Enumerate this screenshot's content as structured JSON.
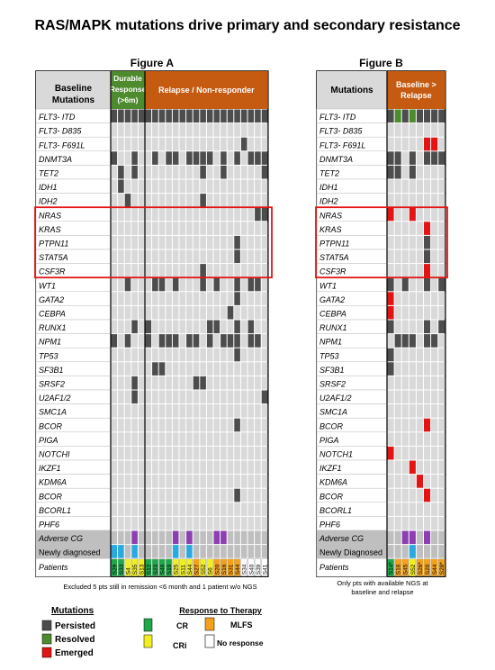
{
  "title": "RAS/MAPK mutations drive primary and secondary resistance",
  "figure_a": {
    "label": "Figure A",
    "header_left": [
      "Baseline",
      "Mutations"
    ],
    "header_durable": [
      "Durable",
      "Response",
      "(>6m)"
    ],
    "header_relapse": "Relapse / Non-responder",
    "footnote": "Excluded 5 pts still in remission <6 month and 1 patient w/o NGS"
  },
  "figure_b": {
    "label": "Figure B",
    "header_left": "Mutations",
    "header_relapse": [
      "Baseline >",
      "Relapse"
    ],
    "footnote": [
      "Only pts with available NGS at",
      "baseline  and relapse"
    ]
  },
  "legend": {
    "mutations_title": "Mutations",
    "persisted": "Persisted",
    "resolved": "Resolved",
    "emerged": "Emerged",
    "response_title": "Response to Therapy",
    "cr": "CR",
    "cri": "CRi",
    "mlfs": "MLFS",
    "no_response": "No response"
  },
  "colors": {
    "persisted": "#4d4d4d",
    "resolved": "#4e8a2e",
    "emerged": "#e31414",
    "empty": "#d9d9d9",
    "adverse": "#8b3fb0",
    "newly": "#2aa9e0",
    "cr": "#1ea84a",
    "cri": "#f2ef1f",
    "mlfs": "#f3a11a",
    "no_response": "#ffffff",
    "header_durable": "#4e8a2e",
    "header_relapse": "#c55a11",
    "highlight_box": "#e31414"
  },
  "chart_data": [
    {
      "type": "heatmap",
      "title": "Figure A",
      "rows": [
        "FLT3- ITD",
        "FLT3- D835",
        "FLT3- F691L",
        "DNMT3A",
        "TET2",
        "IDH1",
        "IDH2",
        "NRAS",
        "KRAS",
        "PTPN11",
        "STAT5A",
        "CSF3R",
        "WT1",
        "GATA2",
        "CEBPA",
        "RUNX1",
        "NPM1",
        "TP53",
        "SF3B1",
        "SRSF2",
        "U2AF1/2",
        "SMC1A",
        "BCOR",
        "PIGA",
        "NOTCHI",
        "IKZF1",
        "KDM6A",
        "BCOR",
        "BCORL1",
        "PHF6",
        "Adverse CG",
        "Newly diagnosed",
        "Patients"
      ],
      "patients": [
        "S29",
        "S33",
        "S4",
        "S35",
        "S13",
        "S12",
        "S23",
        "S46",
        "S19",
        "S25",
        "S11",
        "S44",
        "S27",
        "S52",
        "S6",
        "S20",
        "S16",
        "S31",
        "S44",
        "S34",
        "S40",
        "S39",
        "S41"
      ],
      "groups": [
        {
          "name": "Durable Response (>6m)",
          "size": 5
        },
        {
          "name": "Relapse / Non-responder",
          "size": 18
        }
      ],
      "response": [
        "CR",
        "CR",
        "CRi",
        "CRi",
        "CRi",
        "CR",
        "CR",
        "CR",
        "CR",
        "CRi",
        "CRi",
        "CRi",
        "MLFS",
        "CRi",
        "CRi",
        "MLFS",
        "MLFS",
        "MLFS",
        "MLFS",
        "No response",
        "No response",
        "No response",
        "No response"
      ],
      "highlight_rows": [
        "NRAS",
        "KRAS",
        "PTPN11",
        "STAT5A",
        "CSF3R"
      ],
      "mutations": {
        "FLT3- ITD": [
          [
            0,
            "P"
          ],
          [
            1,
            "P"
          ],
          [
            2,
            "P"
          ],
          [
            3,
            "P"
          ],
          [
            4,
            "P"
          ],
          [
            5,
            "P"
          ],
          [
            6,
            "P"
          ],
          [
            7,
            "P"
          ],
          [
            8,
            "P"
          ],
          [
            9,
            "P"
          ],
          [
            10,
            "P"
          ],
          [
            11,
            "P"
          ],
          [
            12,
            "P"
          ],
          [
            13,
            "P"
          ],
          [
            14,
            "P"
          ],
          [
            15,
            "P"
          ],
          [
            16,
            "P"
          ],
          [
            17,
            "P"
          ],
          [
            18,
            "P"
          ],
          [
            19,
            "P"
          ],
          [
            20,
            "P"
          ],
          [
            21,
            "P"
          ],
          [
            22,
            "P"
          ]
        ],
        "FLT3- F691L": [
          [
            19,
            "P"
          ]
        ],
        "DNMT3A": [
          [
            0,
            "P"
          ],
          [
            3,
            "P"
          ],
          [
            6,
            "P"
          ],
          [
            8,
            "P"
          ],
          [
            9,
            "P"
          ],
          [
            11,
            "P"
          ],
          [
            12,
            "P"
          ],
          [
            13,
            "P"
          ],
          [
            14,
            "P"
          ],
          [
            16,
            "P"
          ],
          [
            18,
            "P"
          ],
          [
            20,
            "P"
          ],
          [
            21,
            "P"
          ],
          [
            22,
            "P"
          ]
        ],
        "TET2": [
          [
            1,
            "P"
          ],
          [
            3,
            "P"
          ],
          [
            13,
            "P"
          ],
          [
            16,
            "P"
          ],
          [
            22,
            "P"
          ]
        ],
        "IDH1": [
          [
            1,
            "P"
          ]
        ],
        "IDH2": [
          [
            2,
            "P"
          ],
          [
            13,
            "P"
          ]
        ],
        "NRAS": [
          [
            21,
            "P"
          ],
          [
            22,
            "P"
          ]
        ],
        "KRAS": [],
        "PTPN11": [
          [
            18,
            "P"
          ]
        ],
        "STAT5A": [
          [
            18,
            "P"
          ]
        ],
        "CSF3R": [
          [
            13,
            "P"
          ]
        ],
        "WT1": [
          [
            2,
            "P"
          ],
          [
            6,
            "P"
          ],
          [
            7,
            "P"
          ],
          [
            9,
            "P"
          ],
          [
            13,
            "P"
          ],
          [
            15,
            "P"
          ],
          [
            18,
            "P"
          ],
          [
            20,
            "P"
          ],
          [
            21,
            "P"
          ]
        ],
        "GATA2": [
          [
            18,
            "P"
          ]
        ],
        "CEBPA": [
          [
            17,
            "P"
          ]
        ],
        "RUNX1": [
          [
            3,
            "P"
          ],
          [
            5,
            "P"
          ],
          [
            14,
            "P"
          ],
          [
            15,
            "P"
          ],
          [
            18,
            "P"
          ],
          [
            20,
            "P"
          ]
        ],
        "NPM1": [
          [
            0,
            "P"
          ],
          [
            2,
            "P"
          ],
          [
            5,
            "P"
          ],
          [
            7,
            "P"
          ],
          [
            8,
            "P"
          ],
          [
            9,
            "P"
          ],
          [
            11,
            "P"
          ],
          [
            12,
            "P"
          ],
          [
            14,
            "P"
          ],
          [
            16,
            "P"
          ],
          [
            17,
            "P"
          ],
          [
            18,
            "P"
          ],
          [
            20,
            "P"
          ],
          [
            21,
            "P"
          ]
        ],
        "TP53": [
          [
            18,
            "P"
          ]
        ],
        "SF3B1": [
          [
            6,
            "P"
          ],
          [
            7,
            "P"
          ]
        ],
        "SRSF2": [
          [
            3,
            "P"
          ],
          [
            12,
            "P"
          ],
          [
            13,
            "P"
          ]
        ],
        "U2AF1/2": [
          [
            3,
            "P"
          ],
          [
            22,
            "P"
          ]
        ],
        "BCOR": [
          [
            18,
            "P"
          ]
        ],
        "Adverse CG": [
          [
            3,
            "Adverse"
          ],
          [
            9,
            "Adverse"
          ],
          [
            11,
            "Adverse"
          ],
          [
            15,
            "Adverse"
          ],
          [
            16,
            "Adverse"
          ]
        ],
        "Newly diagnosed": [
          [
            0,
            "Newly"
          ],
          [
            1,
            "Newly"
          ],
          [
            3,
            "Newly"
          ],
          [
            9,
            "Newly"
          ],
          [
            11,
            "Newly"
          ]
        ]
      }
    },
    {
      "type": "heatmap",
      "title": "Figure B",
      "rows": [
        "FLT3- ITD",
        "FLT3- D835",
        "FLT3- F691L",
        "DNMT3A",
        "TET2",
        "IDH1",
        "IDH2",
        "NRAS",
        "KRAS",
        "PTPN11",
        "STAT5A",
        "CSF3R",
        "WT1",
        "GATA2",
        "CEBPA",
        "RUNX1",
        "NPM1",
        "TP53",
        "SF3B1",
        "SRSF2",
        "U2AF1/2",
        "SMC1A",
        "BCOR",
        "PIGA",
        "NOTCH1",
        "IKZF1",
        "KDM6A",
        "BCOR",
        "BCORL1",
        "PHF6",
        "Adverse CG",
        "Newly Diagnosed",
        "Patients"
      ],
      "patients": [
        "S14*",
        "S16",
        "S45",
        "S52",
        "S26*",
        "S20",
        "S44",
        "S28*"
      ],
      "response": [
        "CR",
        "MLFS",
        "MLFS",
        "CRi",
        "MLFS",
        "MLFS",
        "MLFS",
        "MLFS"
      ],
      "highlight_rows": [
        "NRAS",
        "KRAS",
        "PTPN11",
        "STAT5A",
        "CSF3R"
      ],
      "mutations": {
        "FLT3- ITD": [
          [
            0,
            "P"
          ],
          [
            1,
            "R"
          ],
          [
            2,
            "P"
          ],
          [
            3,
            "R"
          ],
          [
            4,
            "P"
          ],
          [
            5,
            "P"
          ],
          [
            6,
            "P"
          ],
          [
            7,
            "P"
          ]
        ],
        "FLT3- F691L": [
          [
            5,
            "E"
          ],
          [
            6,
            "E"
          ]
        ],
        "DNMT3A": [
          [
            0,
            "P"
          ],
          [
            1,
            "P"
          ],
          [
            3,
            "P"
          ],
          [
            5,
            "P"
          ],
          [
            6,
            "P"
          ],
          [
            7,
            "P"
          ]
        ],
        "TET2": [
          [
            0,
            "P"
          ],
          [
            1,
            "P"
          ],
          [
            3,
            "P"
          ]
        ],
        "NRAS": [
          [
            0,
            "E"
          ],
          [
            3,
            "E"
          ]
        ],
        "KRAS": [
          [
            5,
            "E"
          ]
        ],
        "PTPN11": [
          [
            5,
            "P"
          ]
        ],
        "STAT5A": [
          [
            5,
            "P"
          ]
        ],
        "CSF3R": [
          [
            5,
            "E"
          ]
        ],
        "WT1": [
          [
            0,
            "P"
          ],
          [
            2,
            "P"
          ],
          [
            5,
            "P"
          ],
          [
            7,
            "P"
          ]
        ],
        "GATA2": [
          [
            0,
            "E"
          ]
        ],
        "CEBPA": [
          [
            0,
            "E"
          ]
        ],
        "RUNX1": [
          [
            0,
            "P"
          ],
          [
            5,
            "P"
          ],
          [
            7,
            "P"
          ]
        ],
        "NPM1": [
          [
            1,
            "P"
          ],
          [
            2,
            "P"
          ],
          [
            3,
            "P"
          ],
          [
            5,
            "P"
          ],
          [
            6,
            "P"
          ]
        ],
        "TP53": [
          [
            0,
            "P"
          ]
        ],
        "SF3B1": [
          [
            0,
            "P"
          ]
        ],
        "NOTCH1": [
          [
            0,
            "E"
          ]
        ],
        "IKZF1": [
          [
            3,
            "E"
          ]
        ],
        "KDM6A": [
          [
            4,
            "E"
          ]
        ],
        "BCOR": [
          [
            5,
            "E"
          ]
        ],
        "Adverse CG": [
          [
            2,
            "Adverse"
          ],
          [
            3,
            "Adverse"
          ],
          [
            5,
            "Adverse"
          ]
        ],
        "Newly Diagnosed": [
          [
            3,
            "Newly"
          ]
        ]
      }
    }
  ]
}
